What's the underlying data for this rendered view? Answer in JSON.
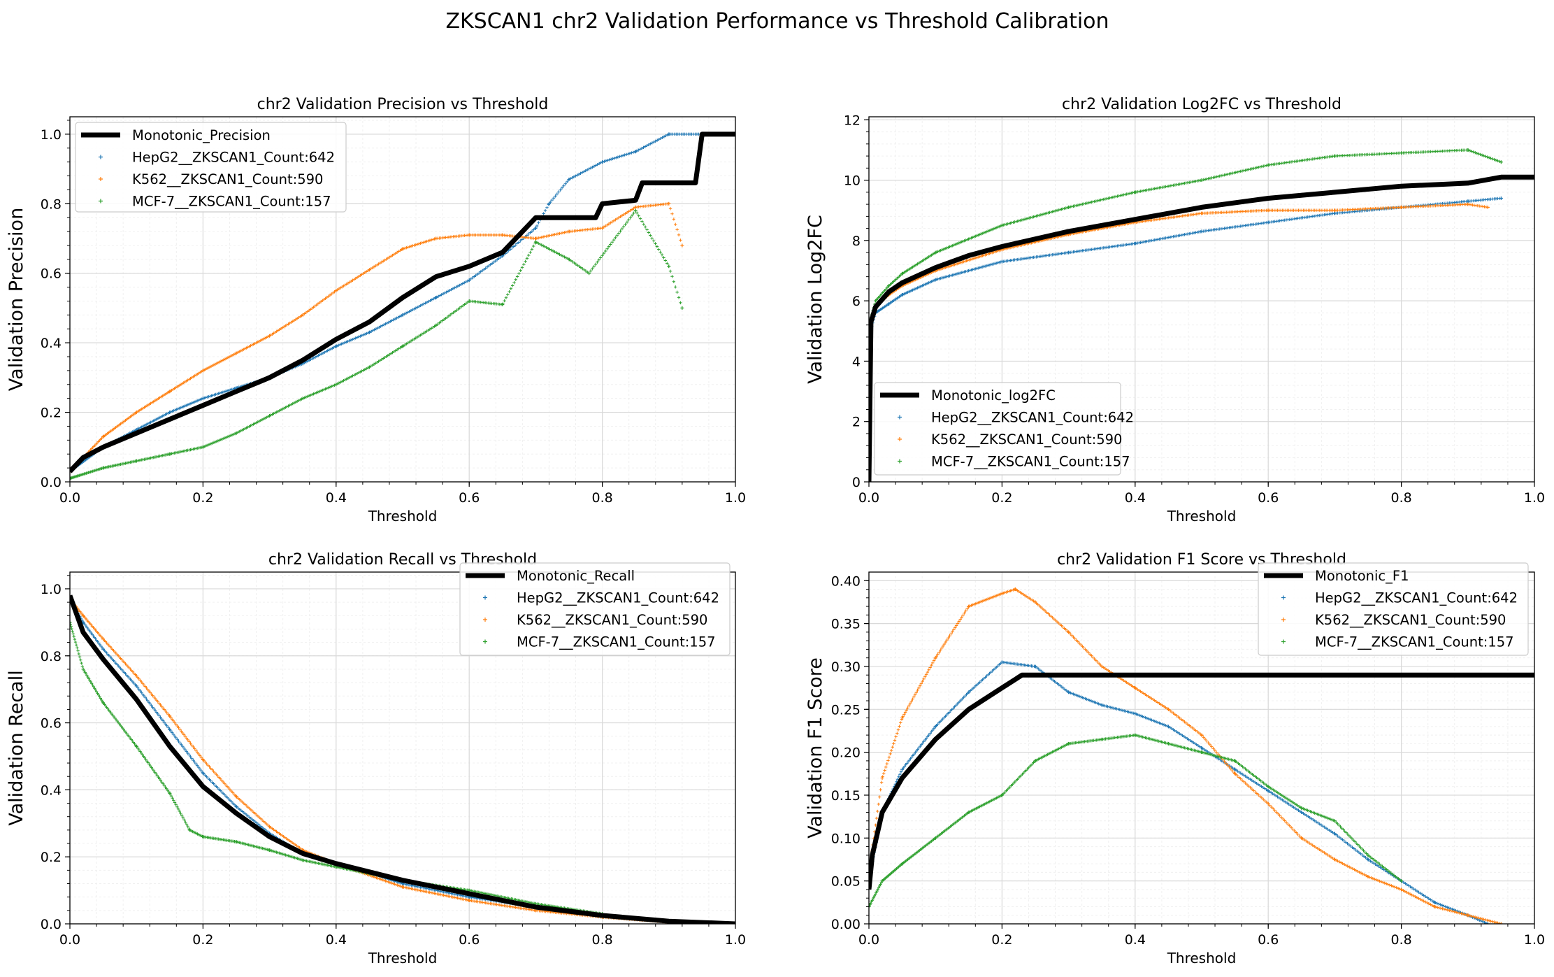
{
  "figure": {
    "title": "ZKSCAN1 chr2 Validation Performance vs Threshold Calibration"
  },
  "colors": {
    "monotonic": "#000000",
    "HepG2": "#1f77b4",
    "K562": "#ff7f0e",
    "MCF-7": "#2ca02c",
    "grid_major": "#d9d9d9",
    "grid_minor": "#f0f0f0"
  },
  "chart_data": [
    {
      "type": "line",
      "title": "chr2 Validation Precision vs Threshold",
      "xlabel": "Threshold",
      "ylabel": "Validation Precision",
      "xlim": [
        0,
        1
      ],
      "ylim": [
        0,
        1.05
      ],
      "xticks": [
        "0.0",
        "0.2",
        "0.4",
        "0.6",
        "0.8",
        "1.0"
      ],
      "yticks": [
        "0.0",
        "0.2",
        "0.4",
        "0.6",
        "0.8",
        "1.0"
      ],
      "grid": true,
      "legend_position": "upper-left",
      "series": [
        {
          "name": "Monotonic_Precision",
          "style": "line",
          "x": [
            0,
            0.02,
            0.05,
            0.1,
            0.15,
            0.2,
            0.25,
            0.3,
            0.35,
            0.4,
            0.45,
            0.5,
            0.55,
            0.6,
            0.65,
            0.7,
            0.79,
            0.8,
            0.85,
            0.86,
            0.9,
            0.93,
            0.94,
            0.95,
            1.0
          ],
          "y": [
            0.03,
            0.07,
            0.1,
            0.14,
            0.18,
            0.22,
            0.26,
            0.3,
            0.35,
            0.41,
            0.46,
            0.53,
            0.59,
            0.62,
            0.66,
            0.76,
            0.76,
            0.8,
            0.81,
            0.86,
            0.86,
            0.86,
            0.86,
            1.0,
            1.0
          ]
        },
        {
          "name": "HepG2__ZKSCAN1_Count:642",
          "style": "markers",
          "x": [
            0,
            0.05,
            0.1,
            0.15,
            0.2,
            0.25,
            0.3,
            0.35,
            0.4,
            0.45,
            0.5,
            0.55,
            0.6,
            0.65,
            0.7,
            0.72,
            0.75,
            0.8,
            0.85,
            0.9,
            0.95
          ],
          "y": [
            0.03,
            0.1,
            0.15,
            0.2,
            0.24,
            0.27,
            0.3,
            0.34,
            0.39,
            0.43,
            0.48,
            0.53,
            0.58,
            0.65,
            0.73,
            0.8,
            0.87,
            0.92,
            0.95,
            1.0,
            1.0
          ]
        },
        {
          "name": "K562__ZKSCAN1_Count:590",
          "style": "markers",
          "x": [
            0,
            0.05,
            0.1,
            0.15,
            0.2,
            0.25,
            0.3,
            0.35,
            0.4,
            0.45,
            0.5,
            0.55,
            0.6,
            0.65,
            0.7,
            0.75,
            0.8,
            0.85,
            0.9,
            0.92
          ],
          "y": [
            0.03,
            0.13,
            0.2,
            0.26,
            0.32,
            0.37,
            0.42,
            0.48,
            0.55,
            0.61,
            0.67,
            0.7,
            0.71,
            0.71,
            0.7,
            0.72,
            0.73,
            0.79,
            0.8,
            0.68
          ]
        },
        {
          "name": "MCF-7__ZKSCAN1_Count:157",
          "style": "markers",
          "x": [
            0,
            0.05,
            0.1,
            0.15,
            0.2,
            0.25,
            0.3,
            0.35,
            0.4,
            0.45,
            0.5,
            0.55,
            0.6,
            0.65,
            0.7,
            0.75,
            0.78,
            0.85,
            0.9,
            0.92
          ],
          "y": [
            0.01,
            0.04,
            0.06,
            0.08,
            0.1,
            0.14,
            0.19,
            0.24,
            0.28,
            0.33,
            0.39,
            0.45,
            0.52,
            0.51,
            0.69,
            0.64,
            0.6,
            0.78,
            0.62,
            0.5
          ]
        }
      ]
    },
    {
      "type": "line",
      "title": "chr2 Validation Log2FC vs Threshold",
      "xlabel": "Threshold",
      "ylabel": "Validation Log2FC",
      "xlim": [
        0,
        1
      ],
      "ylim": [
        0,
        12.1
      ],
      "xticks": [
        "0.0",
        "0.2",
        "0.4",
        "0.6",
        "0.8",
        "1.0"
      ],
      "yticks": [
        "0",
        "2",
        "4",
        "6",
        "8",
        "10",
        "12"
      ],
      "grid": true,
      "legend_position": "lower-left",
      "series": [
        {
          "name": "Monotonic_log2FC",
          "style": "line",
          "x": [
            0,
            0.003,
            0.01,
            0.03,
            0.05,
            0.1,
            0.15,
            0.2,
            0.3,
            0.4,
            0.5,
            0.6,
            0.7,
            0.8,
            0.9,
            0.95,
            1.0
          ],
          "y": [
            0,
            5.3,
            5.8,
            6.3,
            6.6,
            7.1,
            7.5,
            7.8,
            8.3,
            8.7,
            9.1,
            9.4,
            9.6,
            9.8,
            9.9,
            10.1,
            10.1
          ]
        },
        {
          "name": "HepG2__ZKSCAN1_Count:642",
          "style": "markers",
          "x": [
            0,
            0.01,
            0.03,
            0.05,
            0.1,
            0.2,
            0.3,
            0.4,
            0.5,
            0.6,
            0.7,
            0.8,
            0.9,
            0.95
          ],
          "y": [
            4.8,
            5.6,
            5.9,
            6.2,
            6.7,
            7.3,
            7.6,
            7.9,
            8.3,
            8.6,
            8.9,
            9.1,
            9.3,
            9.4
          ]
        },
        {
          "name": "K562__ZKSCAN1_Count:590",
          "style": "markers",
          "x": [
            0,
            0.01,
            0.03,
            0.05,
            0.1,
            0.2,
            0.3,
            0.4,
            0.5,
            0.6,
            0.7,
            0.8,
            0.9,
            0.93
          ],
          "y": [
            5.0,
            5.8,
            6.2,
            6.5,
            7.0,
            7.7,
            8.2,
            8.6,
            8.9,
            9.0,
            9.0,
            9.1,
            9.2,
            9.1
          ]
        },
        {
          "name": "MCF-7__ZKSCAN1_Count:157",
          "style": "markers",
          "x": [
            0,
            0.01,
            0.03,
            0.05,
            0.1,
            0.2,
            0.3,
            0.4,
            0.5,
            0.6,
            0.7,
            0.8,
            0.9,
            0.95
          ],
          "y": [
            5.2,
            6.0,
            6.5,
            6.9,
            7.6,
            8.5,
            9.1,
            9.6,
            10.0,
            10.5,
            10.8,
            10.9,
            11.0,
            10.6
          ]
        }
      ]
    },
    {
      "type": "line",
      "title": "chr2 Validation Recall vs Threshold",
      "xlabel": "Threshold",
      "ylabel": "Validation Recall",
      "xlim": [
        0,
        1
      ],
      "ylim": [
        0,
        1.05
      ],
      "xticks": [
        "0.0",
        "0.2",
        "0.4",
        "0.6",
        "0.8",
        "1.0"
      ],
      "yticks": [
        "0.0",
        "0.2",
        "0.4",
        "0.6",
        "0.8",
        "1.0"
      ],
      "grid": true,
      "legend_position": "upper-right",
      "series": [
        {
          "name": "Monotonic_Recall",
          "style": "line",
          "x": [
            0,
            0.02,
            0.05,
            0.1,
            0.15,
            0.2,
            0.25,
            0.3,
            0.35,
            0.4,
            0.5,
            0.6,
            0.7,
            0.8,
            0.9,
            1.0
          ],
          "y": [
            0.98,
            0.87,
            0.79,
            0.67,
            0.53,
            0.41,
            0.33,
            0.26,
            0.21,
            0.18,
            0.13,
            0.09,
            0.05,
            0.025,
            0.008,
            0
          ]
        },
        {
          "name": "HepG2__ZKSCAN1_Count:642",
          "style": "markers",
          "x": [
            0,
            0.02,
            0.05,
            0.1,
            0.15,
            0.2,
            0.25,
            0.3,
            0.35,
            0.4,
            0.5,
            0.6,
            0.7,
            0.8,
            0.9
          ],
          "y": [
            0.97,
            0.9,
            0.82,
            0.71,
            0.58,
            0.45,
            0.35,
            0.27,
            0.21,
            0.18,
            0.12,
            0.08,
            0.05,
            0.02,
            0.005
          ]
        },
        {
          "name": "K562__ZKSCAN1_Count:590",
          "style": "markers",
          "x": [
            0,
            0.02,
            0.05,
            0.1,
            0.15,
            0.2,
            0.25,
            0.3,
            0.35,
            0.4,
            0.5,
            0.6,
            0.7,
            0.8,
            0.9
          ],
          "y": [
            0.97,
            0.92,
            0.85,
            0.74,
            0.62,
            0.49,
            0.38,
            0.29,
            0.22,
            0.18,
            0.11,
            0.07,
            0.04,
            0.02,
            0.005
          ]
        },
        {
          "name": "MCF-7__ZKSCAN1_Count:157",
          "style": "markers",
          "x": [
            0,
            0.02,
            0.05,
            0.1,
            0.15,
            0.18,
            0.2,
            0.25,
            0.3,
            0.35,
            0.4,
            0.5,
            0.6,
            0.7,
            0.8
          ],
          "y": [
            0.9,
            0.76,
            0.66,
            0.53,
            0.39,
            0.28,
            0.26,
            0.245,
            0.22,
            0.19,
            0.17,
            0.13,
            0.1,
            0.06,
            0.03
          ]
        }
      ]
    },
    {
      "type": "line",
      "title": "chr2 Validation F1 Score vs Threshold",
      "xlabel": "Threshold",
      "ylabel": "Validation F1 Score",
      "xlim": [
        0,
        1
      ],
      "ylim": [
        0,
        0.41
      ],
      "xticks": [
        "0.0",
        "0.2",
        "0.4",
        "0.6",
        "0.8",
        "1.0"
      ],
      "yticks": [
        "0.00",
        "0.05",
        "0.10",
        "0.15",
        "0.20",
        "0.25",
        "0.30",
        "0.35",
        "0.40"
      ],
      "grid": true,
      "legend_position": "upper-right",
      "series": [
        {
          "name": "Monotonic_F1",
          "style": "line",
          "x": [
            0,
            0.005,
            0.02,
            0.05,
            0.1,
            0.15,
            0.2,
            0.22,
            0.23,
            1.0
          ],
          "y": [
            0.04,
            0.08,
            0.13,
            0.17,
            0.215,
            0.25,
            0.275,
            0.285,
            0.29,
            0.29
          ]
        },
        {
          "name": "HepG2__ZKSCAN1_Count:642",
          "style": "markers",
          "x": [
            0,
            0.02,
            0.05,
            0.1,
            0.15,
            0.2,
            0.25,
            0.3,
            0.35,
            0.4,
            0.45,
            0.5,
            0.55,
            0.6,
            0.65,
            0.7,
            0.75,
            0.8,
            0.85,
            0.9,
            0.93
          ],
          "y": [
            0.05,
            0.13,
            0.18,
            0.23,
            0.27,
            0.305,
            0.3,
            0.27,
            0.255,
            0.245,
            0.23,
            0.205,
            0.18,
            0.155,
            0.13,
            0.105,
            0.075,
            0.05,
            0.025,
            0.01,
            0.0
          ]
        },
        {
          "name": "K562__ZKSCAN1_Count:590",
          "style": "markers",
          "x": [
            0,
            0.02,
            0.05,
            0.1,
            0.15,
            0.2,
            0.22,
            0.25,
            0.3,
            0.35,
            0.4,
            0.45,
            0.5,
            0.55,
            0.6,
            0.65,
            0.7,
            0.75,
            0.8,
            0.85,
            0.9,
            0.95
          ],
          "y": [
            0.06,
            0.17,
            0.24,
            0.31,
            0.37,
            0.385,
            0.39,
            0.375,
            0.34,
            0.3,
            0.275,
            0.25,
            0.22,
            0.175,
            0.14,
            0.1,
            0.075,
            0.055,
            0.04,
            0.02,
            0.01,
            0.0
          ]
        },
        {
          "name": "MCF-7__ZKSCAN1_Count:157",
          "style": "markers",
          "x": [
            0,
            0.02,
            0.05,
            0.1,
            0.15,
            0.2,
            0.25,
            0.3,
            0.35,
            0.4,
            0.45,
            0.5,
            0.55,
            0.6,
            0.65,
            0.7,
            0.75,
            0.8
          ],
          "y": [
            0.02,
            0.05,
            0.07,
            0.1,
            0.13,
            0.15,
            0.19,
            0.21,
            0.215,
            0.22,
            0.21,
            0.2,
            0.19,
            0.16,
            0.135,
            0.12,
            0.08,
            0.05
          ]
        }
      ]
    }
  ]
}
